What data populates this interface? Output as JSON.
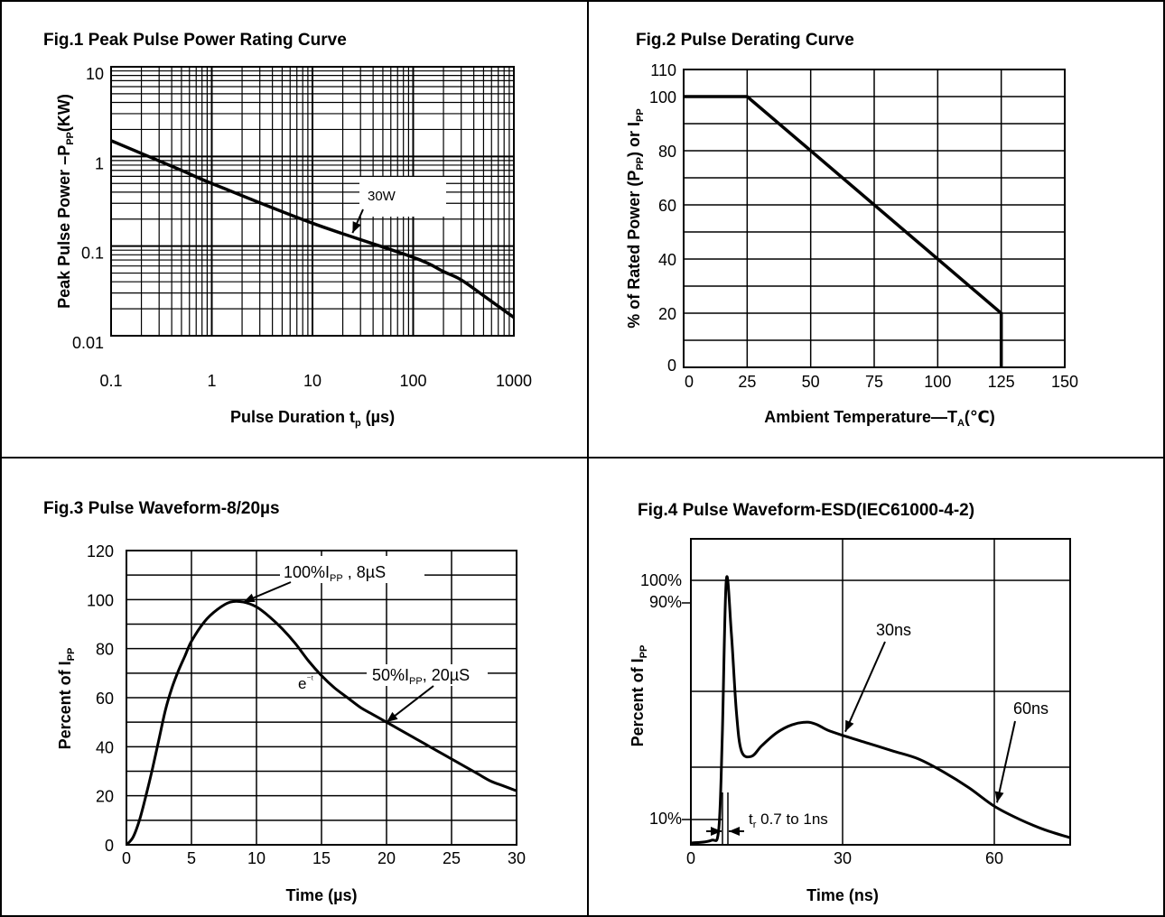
{
  "charts": {
    "fig1": {
      "title": "Fig.1 Peak Pulse Power Rating Curve"
    },
    "fig2": {
      "title": "Fig.2 Pulse Derating Curve"
    },
    "fig3": {
      "title": "Fig.3 Pulse Waveform-8/20µs"
    },
    "fig4": {
      "title": "Fig.4 Pulse Waveform-ESD(IEC61000-4-2)"
    }
  },
  "chart_data": [
    {
      "type": "line",
      "title": "Fig.1 Peak Pulse Power Rating Curve",
      "xlabel": "Pulse Duration tp (µs)",
      "ylabel": "Peak Pulse Power –PPP(KW)",
      "xscale": "log",
      "yscale": "log",
      "xlim": [
        0.1,
        1000
      ],
      "ylim": [
        0.01,
        10
      ],
      "xticks": [
        "0.1",
        "1",
        "10",
        "100",
        "1000"
      ],
      "yticks": [
        "0.01",
        "0.1",
        "1",
        "10"
      ],
      "grid": true,
      "series": [
        {
          "name": "30W",
          "x": [
            0.1,
            0.5,
            1,
            10,
            100,
            200,
            300,
            500,
            1000
          ],
          "y": [
            1.5,
            0.7,
            0.5,
            0.18,
            0.075,
            0.052,
            0.042,
            0.028,
            0.016
          ]
        }
      ],
      "annotations": [
        {
          "text": "30W",
          "x": 25,
          "y": 0.14
        }
      ]
    },
    {
      "type": "line",
      "title": "Fig.2 Pulse Derating Curve",
      "xlabel": "Ambient Temperature—TA(℃)",
      "ylabel": "% of Rated Power (PPP) or IPP",
      "xlim": [
        0,
        150
      ],
      "ylim": [
        0,
        110
      ],
      "xticks": [
        0,
        25,
        50,
        75,
        100,
        125,
        150
      ],
      "yticks": [
        0,
        20,
        40,
        60,
        80,
        100,
        110
      ],
      "grid": true,
      "series": [
        {
          "x": [
            0,
            25,
            125,
            125
          ],
          "y": [
            100,
            100,
            20,
            0
          ]
        }
      ]
    },
    {
      "type": "line",
      "title": "Fig.3 Pulse Waveform-8/20µs",
      "xlabel": "Time (µs)",
      "ylabel": "Percent of IPP",
      "xlim": [
        0,
        30
      ],
      "ylim": [
        0,
        120
      ],
      "xticks": [
        0,
        5,
        10,
        15,
        20,
        25,
        30
      ],
      "yticks": [
        0,
        20,
        40,
        60,
        80,
        100,
        120
      ],
      "grid": true,
      "series": [
        {
          "x": [
            0,
            0.5,
            1,
            1.5,
            2,
            2.5,
            3,
            3.5,
            4,
            4.5,
            5,
            6,
            7,
            8,
            9,
            10,
            11,
            12,
            13,
            14,
            15,
            16,
            17,
            18,
            19,
            20,
            21,
            22,
            23,
            24,
            25,
            26,
            27,
            28,
            29,
            30
          ],
          "y": [
            0,
            3,
            10,
            20,
            31,
            43,
            55,
            64,
            71,
            77,
            83,
            91,
            96,
            99,
            99,
            97,
            93,
            88,
            82,
            75,
            69,
            64,
            60,
            56,
            53,
            50,
            47,
            44,
            41,
            38,
            35,
            32,
            29,
            26,
            24,
            22
          ]
        }
      ],
      "annotations": [
        {
          "text": "100%IPP , 8µS",
          "x": 9,
          "y": 99
        },
        {
          "text": "e⁻ᵗ",
          "x": 13.5,
          "y": 72
        },
        {
          "text": "50%IPP, 20µS",
          "x": 20,
          "y": 50
        }
      ]
    },
    {
      "type": "line",
      "title": "Fig.4 Pulse Waveform-ESD(IEC61000-4-2)",
      "xlabel": "Time (ns)",
      "ylabel": "Percent of IPP",
      "xlim": [
        0,
        75
      ],
      "xticks": [
        0,
        30,
        60
      ],
      "yticks": [
        "10%",
        "90%",
        "100%"
      ],
      "grid": true,
      "series": [
        {
          "x": [
            0,
            4,
            5.5,
            6.2,
            7,
            8,
            9,
            10,
            12,
            14,
            17,
            20,
            23,
            25,
            27,
            30,
            35,
            40,
            45,
            50,
            55,
            60,
            65,
            70,
            75
          ],
          "y": [
            0,
            1,
            5,
            40,
            100,
            80,
            50,
            35,
            33,
            37,
            42,
            45,
            46,
            45,
            43,
            41,
            38,
            35,
            32,
            27,
            21,
            14,
            9,
            5,
            2
          ]
        }
      ],
      "annotations": [
        {
          "text": "30ns",
          "x": 30,
          "y": 41
        },
        {
          "text": "60ns",
          "x": 60,
          "y": 14
        },
        {
          "text": "tr 0.7 to 1ns",
          "x": 7,
          "y": 0
        }
      ]
    }
  ]
}
